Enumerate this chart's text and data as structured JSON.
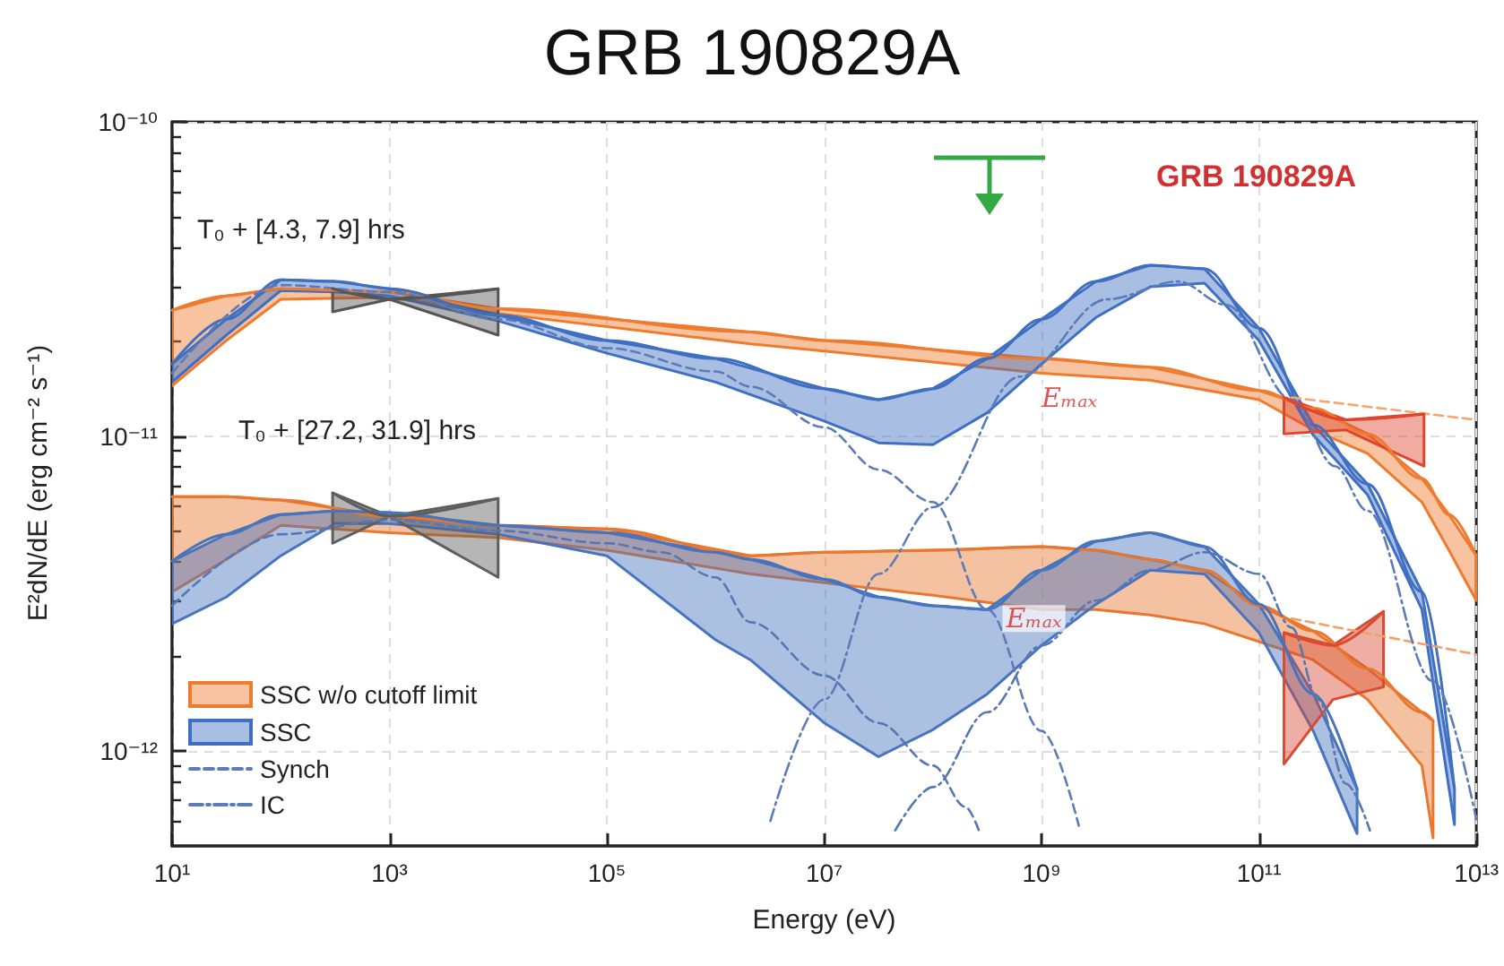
{
  "chart_data": {
    "type": "line",
    "title": "GRB 190829A",
    "xlabel": "Energy (eV)",
    "ylabel": "E²dN/dE (erg cm⁻² s⁻¹)",
    "log": "xy",
    "grid": true,
    "legend": "bottom left",
    "xlim": [
      10,
      10000000000000.0
    ],
    "ylim": [
      5e-13,
      1e-10
    ],
    "xticks": [
      {
        "value": 10,
        "label": "10¹"
      },
      {
        "value": 1000,
        "label": "10³"
      },
      {
        "value": 100000.0,
        "label": "10⁵"
      },
      {
        "value": 10000000.0,
        "label": "10⁷"
      },
      {
        "value": 1000000000.0,
        "label": "10⁹"
      },
      {
        "value": 100000000000.0,
        "label": "10¹¹"
      },
      {
        "value": 10000000000000.0,
        "label": "10¹³"
      }
    ],
    "yticks": [
      {
        "value": 1e-12,
        "label": "10⁻¹²"
      },
      {
        "value": 1e-11,
        "label": "10⁻¹¹"
      },
      {
        "value": 1e-10,
        "label": "10⁻¹⁰"
      },
      {
        "value": 6e-13,
        "label": null
      },
      {
        "value": 7e-13,
        "label": null
      },
      {
        "value": 8e-13,
        "label": null
      },
      {
        "value": 9e-13,
        "label": null
      },
      {
        "value": 2e-12,
        "label": null
      },
      {
        "value": 3e-12,
        "label": null
      },
      {
        "value": 4e-12,
        "label": null
      },
      {
        "value": 5e-12,
        "label": null
      },
      {
        "value": 6e-12,
        "label": null
      },
      {
        "value": 7e-12,
        "label": null
      },
      {
        "value": 8e-12,
        "label": null
      },
      {
        "value": 9e-12,
        "label": null
      },
      {
        "value": 2e-11,
        "label": null
      },
      {
        "value": 3e-11,
        "label": null
      },
      {
        "value": 4e-11,
        "label": null
      },
      {
        "value": 5e-11,
        "label": null
      },
      {
        "value": 6e-11,
        "label": null
      },
      {
        "value": 7e-11,
        "label": null
      },
      {
        "value": 8e-11,
        "label": null
      },
      {
        "value": 9e-11,
        "label": null
      }
    ],
    "annotations": [
      "T₀ + [4.3, 7.9] hrs",
      "T₀ + [27.2, 31.9] hrs",
      "GRB 190829A",
      {
        "text": "Eₘₐₓ",
        "x": 1800000000.0,
        "y": 1.33e-11
      },
      {
        "text": "Eₘₐₓ",
        "x": 850000000.0,
        "y": 2.64e-12
      }
    ],
    "series": [
      {
        "name": "SSC w/o cutoff limit",
        "color": "#ef7b2e",
        "x": [
          10,
          31.6,
          100,
          1000,
          10000.0,
          2100000.0,
          10000000.0,
          1000000000.0,
          10000000000.0,
          100000000000.0,
          316000000000.0,
          1000000000000.0,
          3160000000000.0,
          5600000000000.0,
          10000000000000.0
        ],
        "values": [
          2.52e-11,
          2.8e-11,
          2.95e-11,
          2.88e-11,
          2.55e-11,
          2.15e-11,
          2.02e-11,
          1.77e-11,
          1.66e-11,
          1.4e-11,
          1.23e-11,
          1.02e-11,
          7.35e-12,
          5.65e-12,
          4.18e-12
        ],
        "upper": [
          2.52e-11,
          2.8e-11,
          2.95e-11,
          2.88e-11,
          2.55e-11,
          2.15e-11,
          2.02e-11,
          1.77e-11,
          1.66e-11,
          1.4e-11,
          1.23e-11,
          1.02e-11,
          7.35e-12,
          5.65e-12,
          4.18e-12
        ],
        "lower": [
          1.45e-11,
          2.02e-11,
          2.73e-11,
          2.77e-11,
          2.46e-11,
          1.97e-11,
          1.87e-11,
          1.59e-11,
          1.51e-11,
          1.31e-11,
          1.05e-11,
          8.83e-12,
          6.19e-12,
          4.35e-12,
          3.01e-12
        ]
      },
      {
        "color": "#e8772f",
        "x": [
          10,
          31.6,
          100,
          1000,
          10000.0,
          100000.0,
          2100000.0,
          10000000.0,
          100000000.0,
          1000000000.0,
          3160000000.0,
          10000000000.0,
          31600000000.0,
          100000000000.0,
          316000000000.0,
          1000000000000.0,
          3160000000000.0,
          4000000000000.0
        ],
        "values": [
          6.44e-12,
          6.44e-12,
          6.28e-12,
          5.57e-12,
          5.22e-12,
          5.09e-12,
          4.18e-12,
          4.29e-12,
          4.35e-12,
          4.47e-12,
          4.35e-12,
          4.07e-12,
          3.76e-12,
          2.9e-12,
          2.41e-12,
          1.83e-12,
          1.33e-12,
          1.25e-12
        ],
        "upper": [
          6.44e-12,
          6.44e-12,
          6.28e-12,
          5.57e-12,
          5.22e-12,
          5.09e-12,
          4.18e-12,
          4.29e-12,
          4.35e-12,
          4.47e-12,
          4.35e-12,
          4.07e-12,
          3.76e-12,
          2.9e-12,
          2.41e-12,
          1.83e-12,
          1.33e-12,
          1.25e-12
        ],
        "lower": [
          3.21e-12,
          4.07e-12,
          5.22e-12,
          4.95e-12,
          4.77e-12,
          4.35e-12,
          3.66e-12,
          3.43e-12,
          3.13e-12,
          2.82e-12,
          2.82e-12,
          2.71e-12,
          2.54e-12,
          2.23e-12,
          1.95e-12,
          1.46e-12,
          9e-13,
          5.3e-13
        ]
      },
      {
        "name": "SSC",
        "color": "#3f6fc2",
        "x": [
          10,
          31.6,
          100,
          316,
          1000,
          10000.0,
          100000.0,
          1000000.0,
          10000000.0,
          31600000.0,
          100000000.0,
          316000000.0,
          1000000000.0,
          3160000000.0,
          10000000000.0,
          31600000000.0,
          100000000000.0,
          316000000000.0,
          1000000000000.0,
          3160000000000.0,
          6300000000000.0
        ],
        "values": [
          1.7e-11,
          2.36e-11,
          3.15e-11,
          3.11e-11,
          2.95e-11,
          2.43e-11,
          2.02e-11,
          1.77e-11,
          1.42e-11,
          1.31e-11,
          1.42e-11,
          1.77e-11,
          2.36e-11,
          3.11e-11,
          3.5e-11,
          3.41e-11,
          2.21e-11,
          1.09e-11,
          7.06e-12,
          3.21e-12,
          7.59e-13
        ],
        "upper": [
          1.7e-11,
          2.36e-11,
          3.15e-11,
          3.11e-11,
          2.95e-11,
          2.43e-11,
          2.02e-11,
          1.77e-11,
          1.42e-11,
          1.31e-11,
          1.42e-11,
          1.77e-11,
          2.36e-11,
          3.11e-11,
          3.5e-11,
          3.41e-11,
          2.21e-11,
          1.09e-11,
          7.06e-12,
          3.21e-12,
          7.59e-13
        ],
        "lower": [
          1.49e-11,
          2.1e-11,
          2.91e-11,
          2.88e-11,
          2.8e-11,
          2.33e-11,
          1.84e-11,
          1.49e-11,
          1.12e-11,
          9.55e-12,
          9.42e-12,
          1.19e-11,
          1.7e-11,
          2.39e-11,
          2.99e-11,
          3.07e-11,
          2.02e-11,
          1.01e-11,
          6.53e-12,
          2.82e-12,
          5.84e-13
        ]
      },
      {
        "color": "#4774bf",
        "x": [
          10,
          31.6,
          100,
          316,
          1000,
          10000.0,
          100000.0,
          1000000.0,
          2100000.0,
          10000000.0,
          31600000.0,
          100000000.0,
          316000000.0,
          1000000000.0,
          3160000000.0,
          10000000000.0,
          31600000000.0,
          100000000000.0,
          316000000000.0,
          800000000000.0
        ],
        "values": [
          4.02e-12,
          4.89e-12,
          5.65e-12,
          5.8e-12,
          5.73e-12,
          5.22e-12,
          4.95e-12,
          4.29e-12,
          4.07e-12,
          3.52e-12,
          3.09e-12,
          2.9e-12,
          2.82e-12,
          3.76e-12,
          4.65e-12,
          4.95e-12,
          4.47e-12,
          2.93e-12,
          1.52e-12,
          7.59e-13
        ],
        "upper": [
          4.02e-12,
          4.89e-12,
          5.65e-12,
          5.8e-12,
          5.73e-12,
          5.22e-12,
          4.95e-12,
          4.29e-12,
          4.07e-12,
          3.52e-12,
          3.09e-12,
          2.9e-12,
          2.82e-12,
          3.76e-12,
          4.65e-12,
          4.95e-12,
          4.47e-12,
          2.93e-12,
          1.52e-12,
          7.59e-13
        ],
        "lower": [
          2.54e-12,
          3.09e-12,
          4.18e-12,
          5.29e-12,
          5.29e-12,
          4.89e-12,
          4.18e-12,
          2.26e-12,
          1.95e-12,
          1.23e-12,
          9.6e-13,
          1.17e-12,
          1.52e-12,
          2.17e-12,
          2.93e-12,
          3.76e-12,
          3.66e-12,
          2.38e-12,
          1.16e-12,
          5.47e-13
        ]
      },
      {
        "line_style": "dashed",
        "color": "#f5a56e",
        "x": [
          200000000000.0,
          10000000000000.0
        ],
        "values": [
          1.33e-11,
          1.13e-11
        ]
      },
      {
        "line_style": "dashed",
        "color": "#f2a06a",
        "x": [
          200000000000.0,
          10000000000000.0
        ],
        "values": [
          2.64e-12,
          2.03e-12
        ]
      },
      {
        "name": "Synch",
        "line_style": "dashed",
        "color": "#5b7cb8",
        "x": [
          10,
          100,
          1000,
          10000.0,
          100000.0,
          1000000.0,
          2100000.0,
          10000000.0,
          31600000.0,
          100000000.0,
          316000000.0,
          1000000000.0,
          2200000000.0
        ],
        "values": [
          1.59e-11,
          3.03e-11,
          2.88e-11,
          2.36e-11,
          1.91e-11,
          1.61e-11,
          1.44e-11,
          1.07e-11,
          7.85e-12,
          6.19e-12,
          2.82e-12,
          1.16e-12,
          5.8e-13
        ]
      },
      {
        "line_style": "dashed",
        "color": "#5578b4",
        "x": [
          10,
          100,
          1000,
          10000.0,
          100000.0,
          316000.0,
          1000000.0,
          2100000.0,
          10000000.0,
          31600000.0,
          100000000.0,
          200000000.0,
          270000000.0
        ],
        "values": [
          2.9e-12,
          4.89e-12,
          5.43e-12,
          5.02e-12,
          4.58e-12,
          4.29e-12,
          3.57e-12,
          2.57e-12,
          1.74e-12,
          1.23e-12,
          9e-13,
          6.65e-13,
          5.5e-13
        ]
      },
      {
        "name": "IC",
        "line_style": "dotted",
        "color": "#5b7cb8",
        "x": [
          3200000.0,
          10000000.0,
          31600000.0,
          100000000.0,
          630000000.0,
          4000000000.0,
          18000000000.0,
          50000000000.0,
          200000000000.0,
          500000000000.0,
          1000000000000.0,
          4000000000000.0,
          10000000000000.0
        ],
        "values": [
          6e-13,
          1.46e-12,
          3.66e-12,
          5.96e-12,
          1.55e-11,
          2.73e-11,
          3.11e-11,
          2.62e-11,
          1.31e-11,
          8.05e-12,
          5.8e-12,
          1.67e-12,
          6.07e-13
        ]
      },
      {
        "line_style": "dotted",
        "color": "#5578b4",
        "x": [
          45000000.0,
          100000000.0,
          316000000.0,
          1000000000.0,
          3160000000.0,
          10000000000.0,
          31600000000.0,
          100000000000.0,
          200000000000.0,
          350000000000.0,
          630000000000.0,
          1050000000000.0
        ],
        "values": [
          5.6e-13,
          7.69e-13,
          1.33e-12,
          2.17e-12,
          3.01e-12,
          3.76e-12,
          4.29e-12,
          3.66e-12,
          2.47e-12,
          1.46e-12,
          7.89e-13,
          5.6e-13
        ]
      },
      {
        "color": "#555555",
        "x": [
          300,
          1000,
          10000.0
        ],
        "values": [
          2.95e-11,
          2.73e-11,
          2.95e-11
        ],
        "upper": [
          2.95e-11,
          2.73e-11,
          2.95e-11
        ],
        "lower": [
          2.49e-11,
          2.73e-11,
          2.1e-11
        ]
      },
      {
        "color": "#5e5e5e",
        "x": [
          300,
          1000,
          10000.0
        ],
        "values": [
          6.62e-12,
          5.58e-12,
          6.36e-12
        ],
        "upper": [
          6.62e-12,
          5.58e-12,
          6.36e-12
        ],
        "lower": [
          4.58e-12,
          5.58e-12,
          3.57e-12
        ]
      },
      {
        "color": "#e0452c",
        "x": [
          170000000000.0,
          630000000000.0,
          3300000000000.0
        ],
        "values": [
          1.33e-11,
          1.13e-11,
          1.18e-11
        ],
        "upper": [
          1.33e-11,
          1.13e-11,
          1.18e-11
        ],
        "lower": [
          1.02e-11,
          1.05e-11,
          8.05e-12
        ]
      },
      {
        "color": "#d94b33",
        "x": [
          170000000000.0,
          480000000000.0,
          1400000000000.0
        ],
        "values": [
          2.38e-12,
          2.17e-12,
          2.78e-12
        ],
        "upper": [
          2.38e-12,
          2.17e-12,
          2.78e-12
        ],
        "lower": [
          9.1e-13,
          1.46e-12,
          1.6e-12
        ]
      }
    ]
  }
}
